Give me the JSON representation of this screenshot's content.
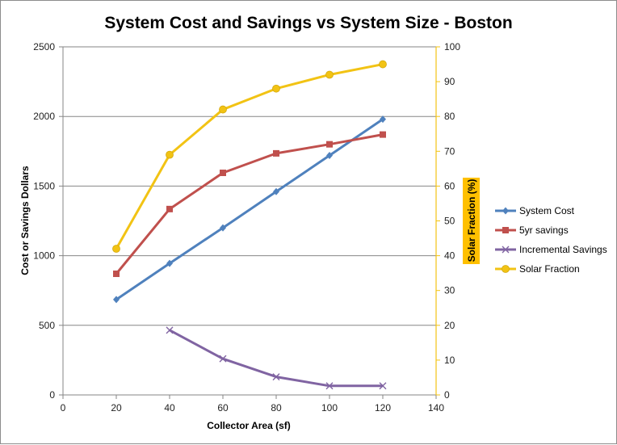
{
  "chart_data": {
    "type": "line",
    "title": "System Cost and Savings vs System Size - Boston",
    "xlabel": "Collector Area (sf)",
    "ylabel": "Cost or Savings Dollars",
    "y2label": "Solar Fraction (%)",
    "xlim": [
      0,
      140
    ],
    "xticks": [
      0,
      20,
      40,
      60,
      80,
      100,
      120,
      140
    ],
    "ylim": [
      0,
      2500
    ],
    "yticks": [
      0,
      500,
      1000,
      1500,
      2000,
      2500
    ],
    "y2lim": [
      0,
      100
    ],
    "y2ticks": [
      0,
      10,
      20,
      30,
      40,
      50,
      60,
      70,
      80,
      90,
      100
    ],
    "grid": "horizontal",
    "legend_position": "right",
    "series": [
      {
        "name": "System Cost",
        "axis": "left",
        "color": "#4f81bd",
        "marker": "diamond",
        "x": [
          20,
          40,
          60,
          80,
          100,
          120
        ],
        "y": [
          685,
          945,
          1200,
          1460,
          1720,
          1980
        ]
      },
      {
        "name": "5yr savings",
        "axis": "left",
        "color": "#c0504d",
        "marker": "square",
        "x": [
          20,
          40,
          60,
          80,
          100,
          120
        ],
        "y": [
          870,
          1335,
          1595,
          1735,
          1800,
          1870
        ]
      },
      {
        "name": "Incremental Savings",
        "axis": "left",
        "color": "#8064a2",
        "marker": "x",
        "x": [
          40,
          60,
          80,
          100,
          120
        ],
        "y": [
          465,
          260,
          130,
          65,
          65
        ]
      },
      {
        "name": "Solar Fraction",
        "axis": "right",
        "color": "#f2c314",
        "marker": "circle",
        "x": [
          20,
          40,
          60,
          80,
          100,
          120
        ],
        "y": [
          42,
          69,
          82,
          88,
          92,
          95
        ]
      }
    ]
  }
}
